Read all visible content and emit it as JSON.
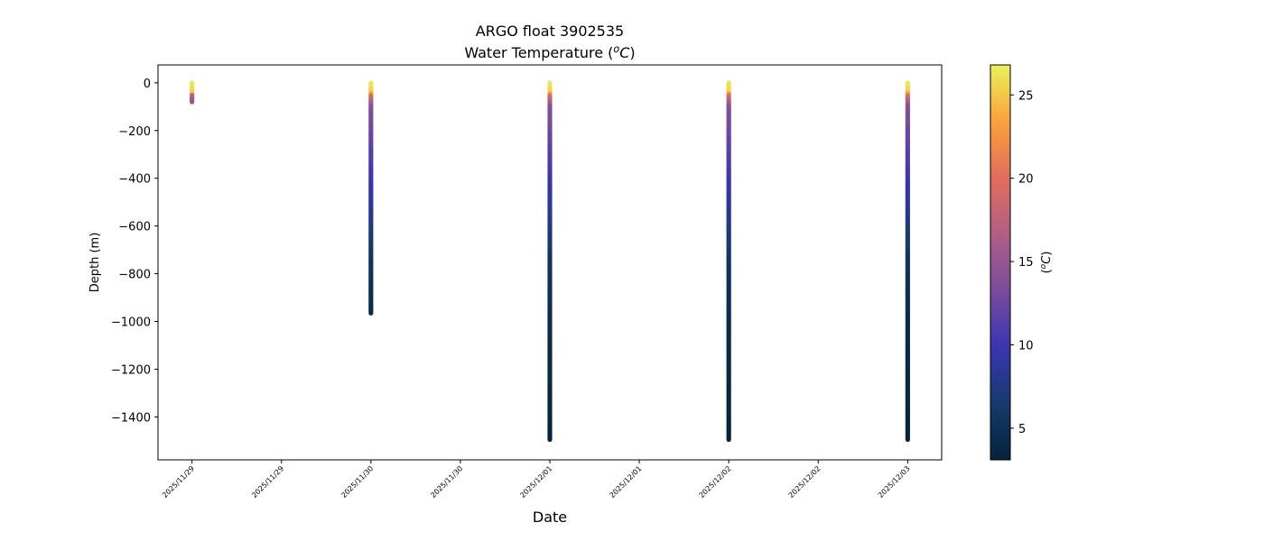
{
  "chart_data": {
    "type": "scatter",
    "title": "ARGO float 3902535",
    "subtitle": "Water Temperature (",
    "subtitle_unit": "oC",
    "xlabel": "Date",
    "ylabel": "Depth (m)",
    "ylim": [
      -1580,
      75
    ],
    "xlim": [
      -0.19,
      4.19
    ],
    "y_ticks": [
      0,
      -200,
      -400,
      -600,
      -800,
      -1000,
      -1200,
      -1400
    ],
    "y_tick_labels": [
      "0",
      "−200",
      "−400",
      "−600",
      "−800",
      "−1000",
      "−1200",
      "−1400"
    ],
    "x_ticks": [
      0,
      0.5,
      1,
      1.5,
      2,
      2.5,
      3,
      3.5,
      4
    ],
    "x_tick_labels": [
      "2025/11/29",
      "2025/11/29",
      "2025/11/30",
      "2025/11/30",
      "2025/12/01",
      "2025/12/01",
      "2025/12/02",
      "2025/12/02",
      "2025/12/03"
    ],
    "grid": false,
    "colorbar": {
      "label": "oC",
      "range": [
        3.1,
        26.8
      ],
      "ticks": [
        5,
        10,
        15,
        20,
        25
      ],
      "colormap": "thermal",
      "colors": [
        "#04233a",
        "#173a6e",
        "#3a35b1",
        "#7a4c9c",
        "#b05f85",
        "#e26d5c",
        "#f9a23b",
        "#e9f25a"
      ]
    },
    "profiles": [
      {
        "date": "2025/11/29",
        "x": 0,
        "max_depth": 80,
        "profile": [
          [
            0,
            26.5
          ],
          [
            -45,
            25.5
          ],
          [
            -55,
            17
          ],
          [
            -80,
            15
          ]
        ]
      },
      {
        "date": "2025/11/30",
        "x": 1,
        "max_depth": 965,
        "profile": [
          [
            0,
            26.5
          ],
          [
            -40,
            25.5
          ],
          [
            -55,
            20
          ],
          [
            -100,
            14
          ],
          [
            -250,
            12
          ],
          [
            -450,
            9.5
          ],
          [
            -600,
            7.5
          ],
          [
            -750,
            5.5
          ],
          [
            -965,
            4.2
          ]
        ]
      },
      {
        "date": "2025/12/01",
        "x": 2,
        "max_depth": 1495,
        "profile": [
          [
            0,
            26.5
          ],
          [
            -40,
            25.5
          ],
          [
            -55,
            20
          ],
          [
            -100,
            14
          ],
          [
            -250,
            12
          ],
          [
            -450,
            9.5
          ],
          [
            -600,
            7.5
          ],
          [
            -750,
            5.5
          ],
          [
            -1000,
            4.3
          ],
          [
            -1495,
            3.2
          ]
        ]
      },
      {
        "date": "2025/12/02",
        "x": 3,
        "max_depth": 1495,
        "profile": [
          [
            0,
            26.5
          ],
          [
            -40,
            25.5
          ],
          [
            -55,
            20
          ],
          [
            -100,
            14
          ],
          [
            -250,
            12
          ],
          [
            -450,
            9.5
          ],
          [
            -600,
            7.5
          ],
          [
            -750,
            5.5
          ],
          [
            -1000,
            4.3
          ],
          [
            -1495,
            3.2
          ]
        ]
      },
      {
        "date": "2025/12/03",
        "x": 4,
        "max_depth": 1495,
        "profile": [
          [
            0,
            26.5
          ],
          [
            -40,
            25.5
          ],
          [
            -55,
            20
          ],
          [
            -100,
            14
          ],
          [
            -250,
            12
          ],
          [
            -450,
            9.5
          ],
          [
            -600,
            7.5
          ],
          [
            -750,
            5.5
          ],
          [
            -1000,
            4.3
          ],
          [
            -1495,
            3.2
          ]
        ]
      }
    ]
  }
}
